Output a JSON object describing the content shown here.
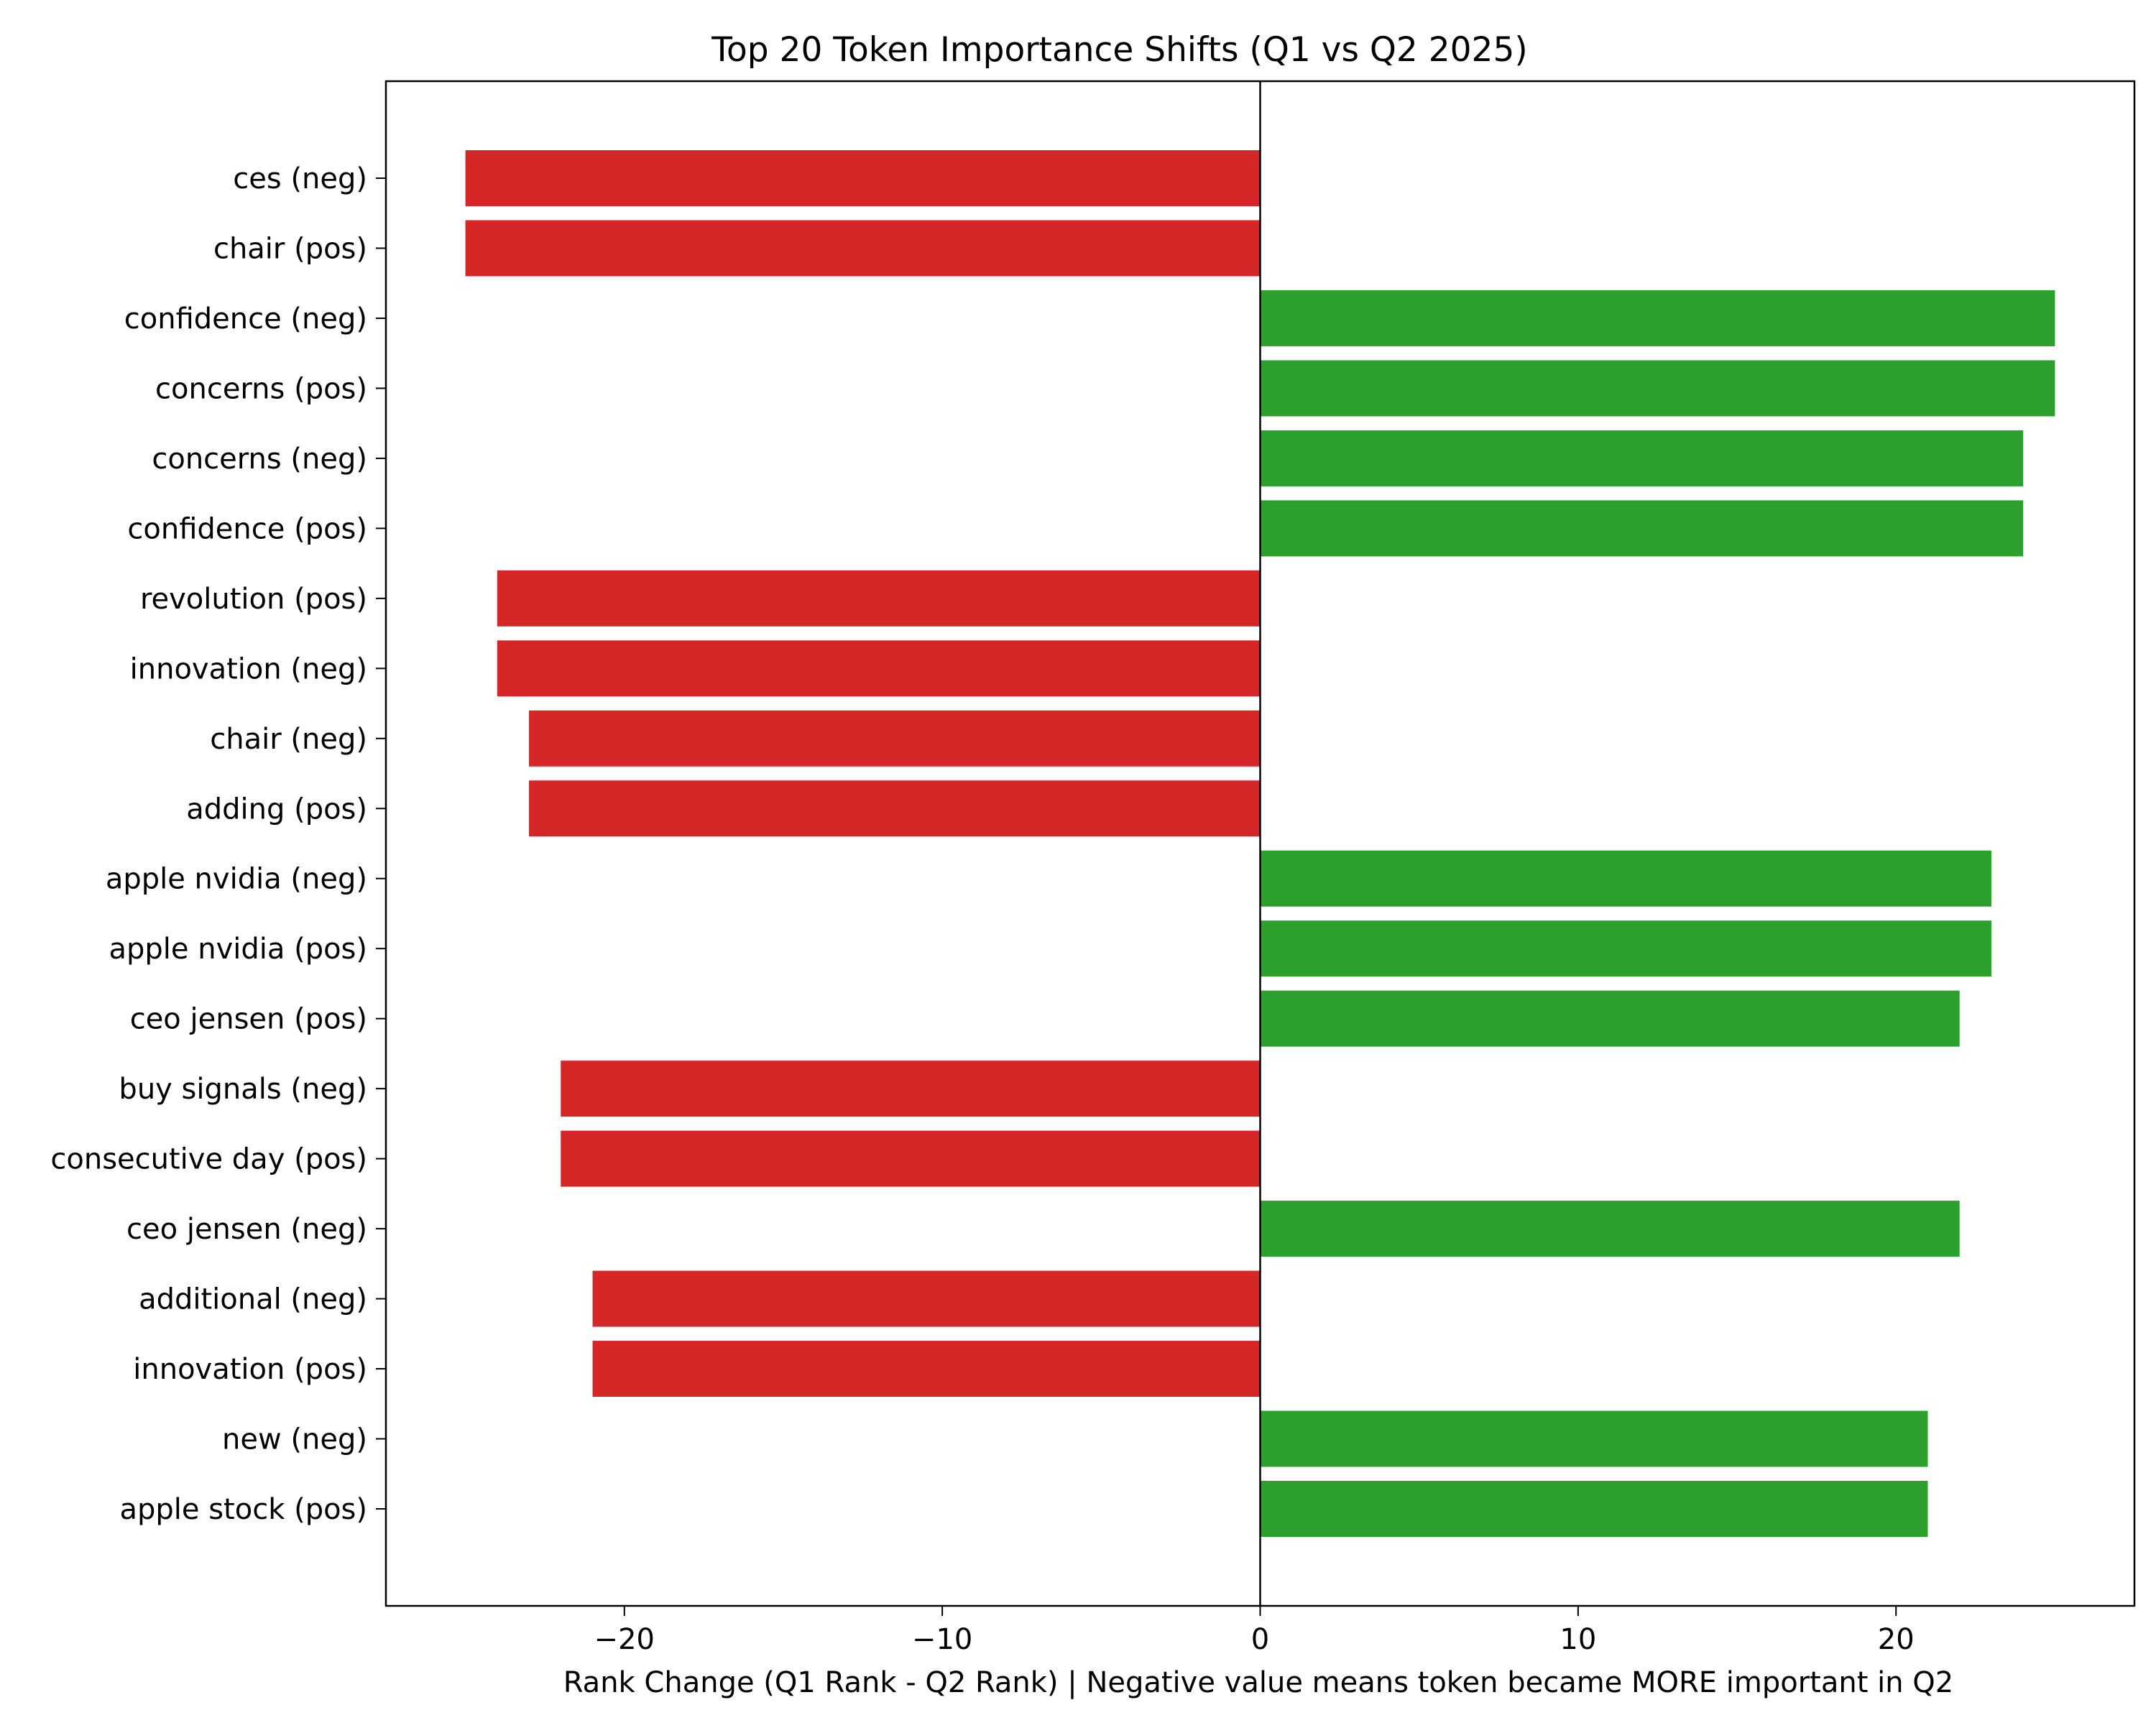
{
  "chart_data": {
    "type": "bar",
    "orientation": "horizontal",
    "title": "Top 20 Token Importance Shifts (Q1 vs Q2 2025)",
    "xlabel": "Rank Change (Q1 Rank - Q2 Rank) | Negative value means token became MORE important in Q2",
    "ylabel": "",
    "xlim": [
      -27.5,
      27.5
    ],
    "xticks": [
      -20,
      -10,
      0,
      10,
      20
    ],
    "xtick_labels": [
      "−20",
      "−10",
      "0",
      "10",
      "20"
    ],
    "grid": false,
    "legend": "none",
    "zero_line": true,
    "colors": {
      "negative": "#d62728",
      "positive": "#2ca02c",
      "axis": "#000000"
    },
    "categories": [
      "ces (neg)",
      "chair (pos)",
      "confidence (neg)",
      "concerns (pos)",
      "concerns (neg)",
      "confidence (pos)",
      "revolution (pos)",
      "innovation (neg)",
      "chair (neg)",
      "adding (pos)",
      "apple nvidia (neg)",
      "apple nvidia (pos)",
      "ceo jensen (pos)",
      "buy signals (neg)",
      "consecutive day (pos)",
      "ceo jensen (neg)",
      "additional (neg)",
      "innovation (pos)",
      "new (neg)",
      "apple stock (pos)"
    ],
    "values": [
      -25,
      -25,
      25,
      25,
      24,
      24,
      -24,
      -24,
      -23,
      -23,
      23,
      23,
      22,
      -22,
      -22,
      22,
      -21,
      -21,
      21,
      21
    ]
  }
}
